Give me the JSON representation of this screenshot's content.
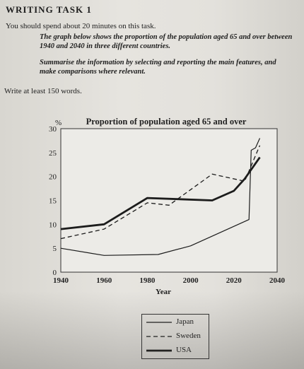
{
  "task": {
    "title": "WRITING TASK 1",
    "instruction": "You should spend about 20 minutes on this task.",
    "prompt_1": "The graph below shows the proportion of the population aged 65 and over between 1940 and 2040 in three different countries.",
    "prompt_2": "Summarise the information by selecting and reporting the main features, and make comparisons where relevant.",
    "word_count": "Write at least 150 words."
  },
  "chart_data": {
    "type": "line",
    "title": "Proportion of population aged 65 and over",
    "xlabel": "Year",
    "ylabel": "%",
    "xlim": [
      1940,
      2040
    ],
    "ylim": [
      0,
      30
    ],
    "x_ticks": [
      1940,
      1960,
      1980,
      2000,
      2020,
      2040
    ],
    "y_ticks": [
      0,
      5,
      10,
      15,
      20,
      25,
      30
    ],
    "grid": "horizontal",
    "legend_position": "bottom",
    "series": [
      {
        "name": "Japan",
        "style": "thin-solid",
        "points": [
          [
            1940,
            5
          ],
          [
            1960,
            3.5
          ],
          [
            1985,
            3.7
          ],
          [
            2000,
            5.5
          ],
          [
            2027,
            11
          ],
          [
            2028,
            25.5
          ],
          [
            2030,
            26
          ],
          [
            2032,
            28
          ]
        ]
      },
      {
        "name": "Sweden",
        "style": "dashed",
        "points": [
          [
            1940,
            7
          ],
          [
            1960,
            9
          ],
          [
            1980,
            14.5
          ],
          [
            1990,
            14
          ],
          [
            2010,
            20.5
          ],
          [
            2025,
            19
          ],
          [
            2032,
            26.5
          ]
        ]
      },
      {
        "name": "USA",
        "style": "thick-solid",
        "points": [
          [
            1940,
            9
          ],
          [
            1960,
            10
          ],
          [
            1980,
            15.5
          ],
          [
            2010,
            15
          ],
          [
            2020,
            17
          ],
          [
            2025,
            19.5
          ],
          [
            2032,
            24
          ]
        ]
      }
    ]
  }
}
